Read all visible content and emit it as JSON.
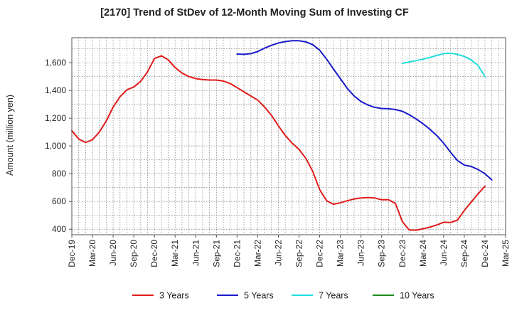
{
  "chart_data": {
    "type": "line",
    "title": "[2170]  Trend of StDev of 12-Month Moving Sum of Investing CF",
    "xlabel": "",
    "ylabel": "Amount (million yen)",
    "ylim": [
      360,
      1780
    ],
    "yticks": [
      400,
      600,
      800,
      1000,
      1200,
      1400,
      1600
    ],
    "x_start": "2019-12",
    "x_end": "2025-03",
    "xticks": [
      "Dec-19",
      "Mar-20",
      "Jun-20",
      "Sep-20",
      "Dec-20",
      "Mar-21",
      "Jun-21",
      "Sep-21",
      "Dec-21",
      "Mar-22",
      "Jun-22",
      "Sep-22",
      "Dec-22",
      "Mar-23",
      "Jun-23",
      "Sep-23",
      "Dec-23",
      "Mar-24",
      "Jun-24",
      "Sep-24",
      "Dec-24",
      "Mar-25"
    ],
    "grid": true,
    "legend_position": "bottom",
    "series": [
      {
        "name": "3 Years",
        "color": "#e01b1b",
        "points": [
          [
            "2019-12",
            1110
          ],
          [
            "2020-01",
            1050
          ],
          [
            "2020-02",
            1025
          ],
          [
            "2020-03",
            1045
          ],
          [
            "2020-04",
            1100
          ],
          [
            "2020-05",
            1180
          ],
          [
            "2020-06",
            1280
          ],
          [
            "2020-07",
            1355
          ],
          [
            "2020-08",
            1405
          ],
          [
            "2020-09",
            1425
          ],
          [
            "2020-10",
            1465
          ],
          [
            "2020-11",
            1535
          ],
          [
            "2020-12",
            1630
          ],
          [
            "2021-01",
            1650
          ],
          [
            "2021-02",
            1620
          ],
          [
            "2021-03",
            1565
          ],
          [
            "2021-04",
            1525
          ],
          [
            "2021-05",
            1500
          ],
          [
            "2021-06",
            1485
          ],
          [
            "2021-07",
            1478
          ],
          [
            "2021-08",
            1475
          ],
          [
            "2021-09",
            1475
          ],
          [
            "2021-10",
            1468
          ],
          [
            "2021-11",
            1450
          ],
          [
            "2021-12",
            1420
          ],
          [
            "2022-01",
            1390
          ],
          [
            "2022-02",
            1360
          ],
          [
            "2022-03",
            1330
          ],
          [
            "2022-04",
            1280
          ],
          [
            "2022-05",
            1220
          ],
          [
            "2022-06",
            1145
          ],
          [
            "2022-07",
            1075
          ],
          [
            "2022-08",
            1020
          ],
          [
            "2022-09",
            975
          ],
          [
            "2022-10",
            910
          ],
          [
            "2022-11",
            815
          ],
          [
            "2022-12",
            685
          ],
          [
            "2023-01",
            605
          ],
          [
            "2023-02",
            580
          ],
          [
            "2023-03",
            590
          ],
          [
            "2023-04",
            605
          ],
          [
            "2023-05",
            618
          ],
          [
            "2023-06",
            625
          ],
          [
            "2023-07",
            628
          ],
          [
            "2023-08",
            625
          ],
          [
            "2023-09",
            612
          ],
          [
            "2023-10",
            612
          ],
          [
            "2023-11",
            585
          ],
          [
            "2023-12",
            455
          ],
          [
            "2024-01",
            395
          ],
          [
            "2024-02",
            393
          ],
          [
            "2024-03",
            403
          ],
          [
            "2024-04",
            415
          ],
          [
            "2024-05",
            430
          ],
          [
            "2024-06",
            450
          ],
          [
            "2024-07",
            448
          ],
          [
            "2024-08",
            465
          ],
          [
            "2024-09",
            535
          ],
          [
            "2024-10",
            595
          ],
          [
            "2024-11",
            655
          ],
          [
            "2024-12",
            710
          ]
        ]
      },
      {
        "name": "5 Years",
        "color": "#1a1acc",
        "points": [
          [
            "2021-12",
            1662
          ],
          [
            "2022-01",
            1660
          ],
          [
            "2022-02",
            1665
          ],
          [
            "2022-03",
            1680
          ],
          [
            "2022-04",
            1705
          ],
          [
            "2022-05",
            1725
          ],
          [
            "2022-06",
            1742
          ],
          [
            "2022-07",
            1752
          ],
          [
            "2022-08",
            1758
          ],
          [
            "2022-09",
            1758
          ],
          [
            "2022-10",
            1750
          ],
          [
            "2022-11",
            1730
          ],
          [
            "2022-12",
            1690
          ],
          [
            "2023-01",
            1625
          ],
          [
            "2023-02",
            1555
          ],
          [
            "2023-03",
            1485
          ],
          [
            "2023-04",
            1415
          ],
          [
            "2023-05",
            1360
          ],
          [
            "2023-06",
            1320
          ],
          [
            "2023-07",
            1295
          ],
          [
            "2023-08",
            1278
          ],
          [
            "2023-09",
            1270
          ],
          [
            "2023-10",
            1268
          ],
          [
            "2023-11",
            1262
          ],
          [
            "2023-12",
            1250
          ],
          [
            "2024-01",
            1225
          ],
          [
            "2024-02",
            1195
          ],
          [
            "2024-03",
            1160
          ],
          [
            "2024-04",
            1120
          ],
          [
            "2024-05",
            1075
          ],
          [
            "2024-06",
            1020
          ],
          [
            "2024-07",
            955
          ],
          [
            "2024-08",
            895
          ],
          [
            "2024-09",
            862
          ],
          [
            "2024-10",
            852
          ],
          [
            "2024-11",
            830
          ],
          [
            "2024-12",
            800
          ],
          [
            "2025-01",
            755
          ]
        ]
      },
      {
        "name": "7 Years",
        "color": "#22dddd",
        "points": [
          [
            "2023-12",
            1595
          ],
          [
            "2024-01",
            1605
          ],
          [
            "2024-02",
            1615
          ],
          [
            "2024-03",
            1625
          ],
          [
            "2024-04",
            1638
          ],
          [
            "2024-05",
            1652
          ],
          [
            "2024-06",
            1665
          ],
          [
            "2024-07",
            1668
          ],
          [
            "2024-08",
            1660
          ],
          [
            "2024-09",
            1645
          ],
          [
            "2024-10",
            1620
          ],
          [
            "2024-11",
            1580
          ],
          [
            "2024-12",
            1500
          ]
        ]
      },
      {
        "name": "10 Years",
        "color": "#1f8a1f",
        "points": []
      }
    ]
  }
}
